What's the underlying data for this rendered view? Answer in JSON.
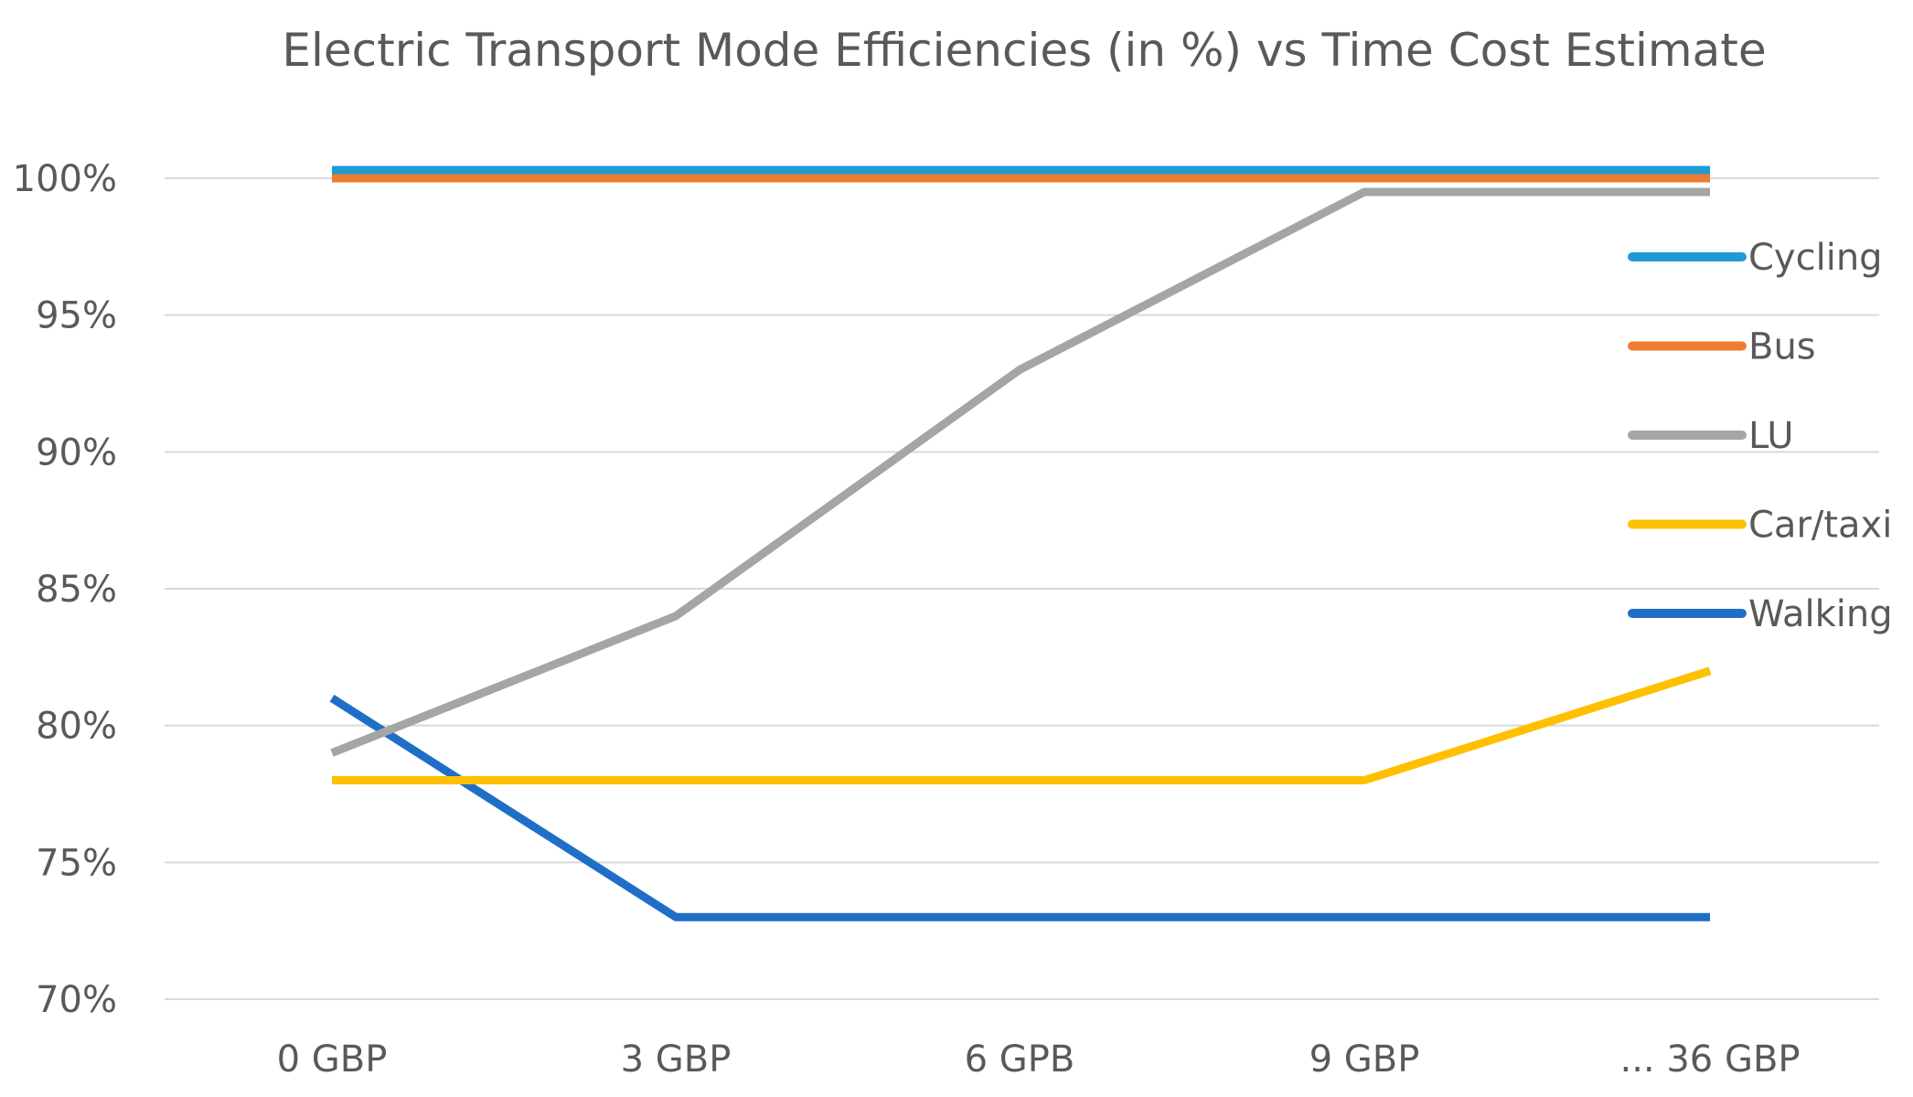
{
  "chart_data": {
    "type": "line",
    "title": "Electric Transport Mode Efficiencies (in %) vs Time Cost Estimate",
    "categories": [
      "0 GBP",
      "3 GBP",
      "6 GPB",
      "9 GBP",
      "...  36 GBP"
    ],
    "ylim": [
      70,
      100
    ],
    "yticks": [
      70,
      75,
      80,
      85,
      90,
      95,
      100
    ],
    "ytick_labels": [
      "70%",
      "75%",
      "80%",
      "85%",
      "90%",
      "95%",
      "100%"
    ],
    "grid": true,
    "legend_position": "right",
    "xlabel": "",
    "ylabel": "",
    "series": [
      {
        "name": "Cycling",
        "color": "#1f9ad6",
        "values": [
          100.3,
          100.3,
          100.3,
          100.3,
          100.3
        ]
      },
      {
        "name": "Bus",
        "color": "#ed7d31",
        "values": [
          100,
          100,
          100,
          100,
          100
        ]
      },
      {
        "name": "LU",
        "color": "#a5a5a5",
        "values": [
          79,
          84,
          93,
          99.5,
          99.5
        ]
      },
      {
        "name": "Car/taxi",
        "color": "#ffc000",
        "values": [
          78,
          78,
          78,
          78,
          82
        ]
      },
      {
        "name": "Walking",
        "color": "#1f6fc6",
        "values": [
          81,
          73,
          73,
          73,
          73
        ]
      }
    ]
  }
}
